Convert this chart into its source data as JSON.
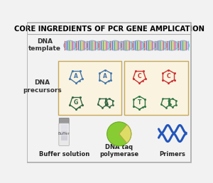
{
  "title": "CORE INGREDIENTS OF PCR GENE AMPLICATION",
  "title_fontsize": 7.2,
  "bg_color": "#f2f2f2",
  "dna_label": "DNA\ntemplate",
  "precursors_label": "DNA\nprecursors",
  "buffer_label": "Buffer solution",
  "taq_label": "DNA taq\npolymerase",
  "primers_label": "Primers",
  "box_color": "#faf3e0",
  "box_border": "#c8a855",
  "blue_nuc": "#4477aa",
  "green_nuc": "#336644",
  "red_nuc": "#cc3333",
  "dkgreen_nuc": "#337744",
  "primer_color": "#2255bb",
  "tube_body": "#e8e8e8",
  "tube_cap": "#999999",
  "taq_green": "#88cc33",
  "taq_yellow": "#dddd66"
}
